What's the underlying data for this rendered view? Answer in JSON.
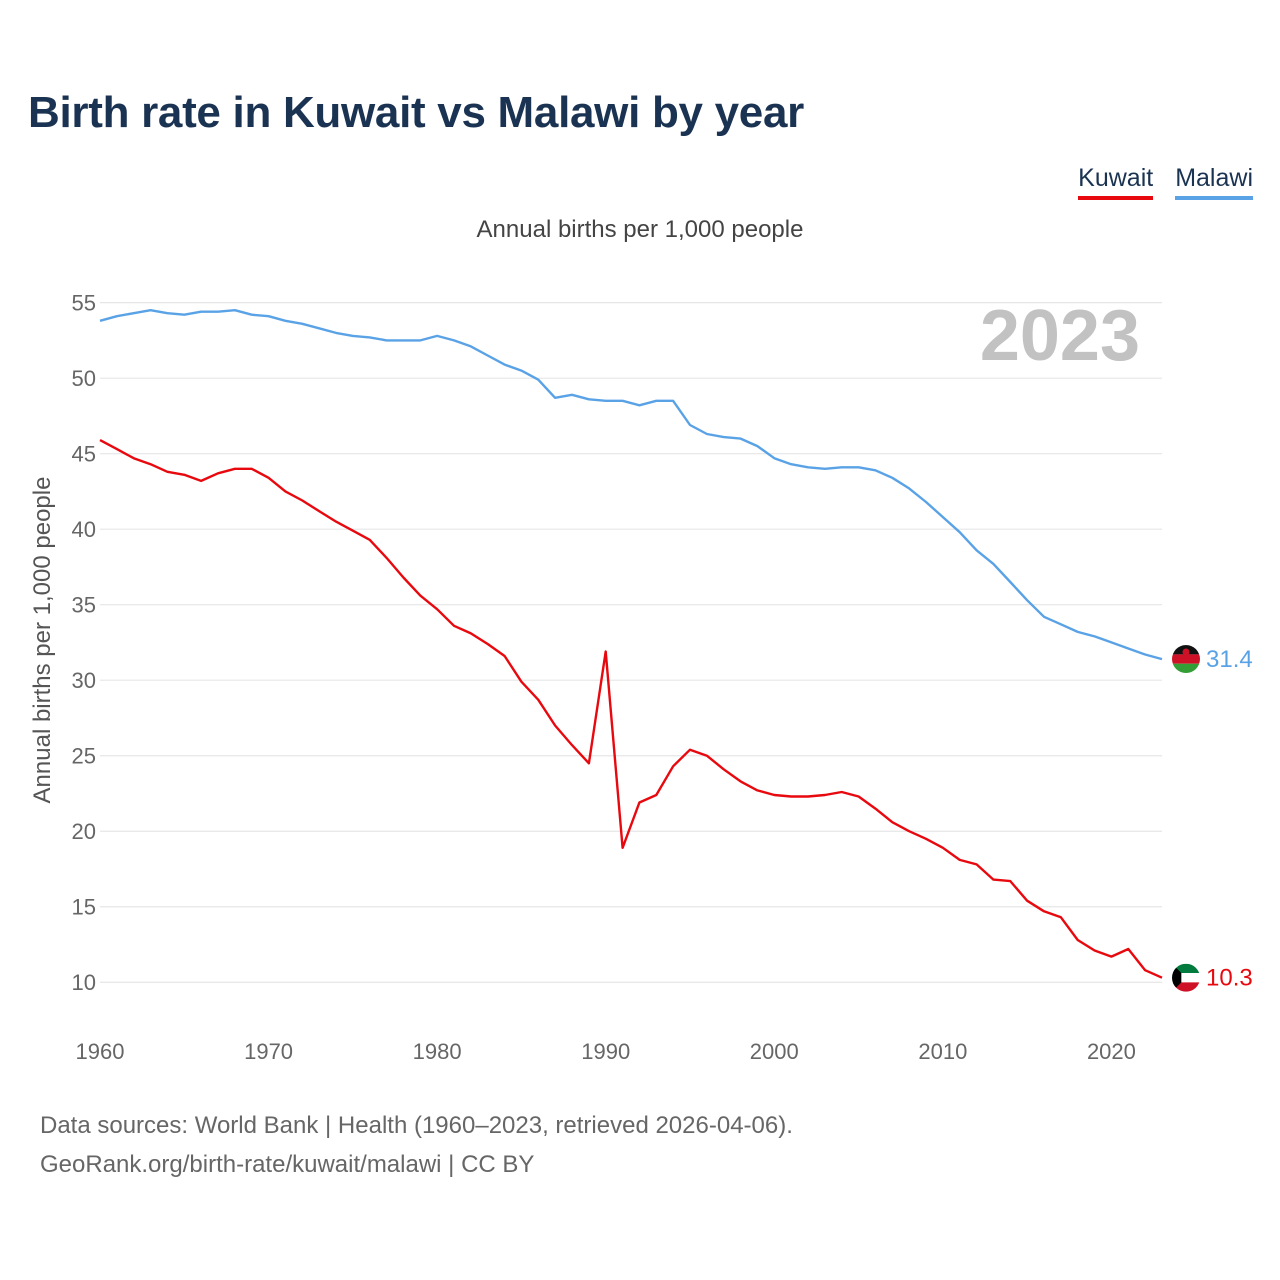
{
  "title": "Birth rate in Kuwait vs Malawi by year",
  "subtitle": "Annual births per 1,000 people",
  "legend": [
    {
      "label": "Kuwait",
      "color": "#e8090f"
    },
    {
      "label": "Malawi",
      "color": "#5aa2e6"
    }
  ],
  "footer": {
    "line1": "Data sources: World Bank | Health (1960–2023, retrieved 2026-04-06).",
    "line2": "GeoRank.org/birth-rate/kuwait/malawi | CC BY"
  },
  "chart_data": {
    "type": "line",
    "title": "Birth rate in Kuwait vs Malawi by year",
    "ylabel": "Annual births per 1,000 people",
    "xlabel": "",
    "xlim": [
      1960,
      2023
    ],
    "ylim": [
      7.5,
      56.5
    ],
    "x_ticks": [
      1960,
      1970,
      1980,
      1990,
      2000,
      2010,
      2020
    ],
    "y_ticks": [
      10,
      15,
      20,
      25,
      30,
      35,
      40,
      45,
      50,
      55
    ],
    "year_label": "2023",
    "grid": true,
    "x": [
      1960,
      1961,
      1962,
      1963,
      1964,
      1965,
      1966,
      1967,
      1968,
      1969,
      1970,
      1971,
      1972,
      1973,
      1974,
      1975,
      1976,
      1977,
      1978,
      1979,
      1980,
      1981,
      1982,
      1983,
      1984,
      1985,
      1986,
      1987,
      1988,
      1989,
      1990,
      1991,
      1992,
      1993,
      1994,
      1995,
      1996,
      1997,
      1998,
      1999,
      2000,
      2001,
      2002,
      2003,
      2004,
      2005,
      2006,
      2007,
      2008,
      2009,
      2010,
      2011,
      2012,
      2013,
      2014,
      2015,
      2016,
      2017,
      2018,
      2019,
      2020,
      2021,
      2022,
      2023
    ],
    "series": [
      {
        "name": "Kuwait",
        "color": "#e8090f",
        "end_label": "10.3",
        "values": [
          45.9,
          45.3,
          44.7,
          44.3,
          43.8,
          43.6,
          43.2,
          43.7,
          44.0,
          44.0,
          43.4,
          42.5,
          41.9,
          41.2,
          40.5,
          39.9,
          39.3,
          38.1,
          36.8,
          35.6,
          34.7,
          33.6,
          33.1,
          32.4,
          31.6,
          29.9,
          28.7,
          27.0,
          25.7,
          24.5,
          31.9,
          18.9,
          21.9,
          22.4,
          24.3,
          25.4,
          25.0,
          24.1,
          23.3,
          22.7,
          22.4,
          22.3,
          22.3,
          22.4,
          22.6,
          22.3,
          21.5,
          20.6,
          20.0,
          19.5,
          18.9,
          18.1,
          17.8,
          16.8,
          16.7,
          15.4,
          14.7,
          14.3,
          12.8,
          12.1,
          11.7,
          12.2,
          10.8,
          10.3
        ]
      },
      {
        "name": "Malawi",
        "color": "#5aa2e6",
        "end_label": "31.4",
        "values": [
          53.8,
          54.1,
          54.3,
          54.5,
          54.3,
          54.2,
          54.4,
          54.4,
          54.5,
          54.2,
          54.1,
          53.8,
          53.6,
          53.3,
          53.0,
          52.8,
          52.7,
          52.5,
          52.5,
          52.5,
          52.8,
          52.5,
          52.1,
          51.5,
          50.9,
          50.5,
          49.9,
          48.7,
          48.9,
          48.6,
          48.5,
          48.5,
          48.2,
          48.5,
          48.5,
          46.9,
          46.3,
          46.1,
          46.0,
          45.5,
          44.7,
          44.3,
          44.1,
          44.0,
          44.1,
          44.1,
          43.9,
          43.4,
          42.7,
          41.8,
          40.8,
          39.8,
          38.6,
          37.7,
          36.5,
          35.3,
          34.2,
          33.7,
          33.2,
          32.9,
          32.5,
          32.1,
          31.7,
          31.4
        ]
      }
    ]
  }
}
